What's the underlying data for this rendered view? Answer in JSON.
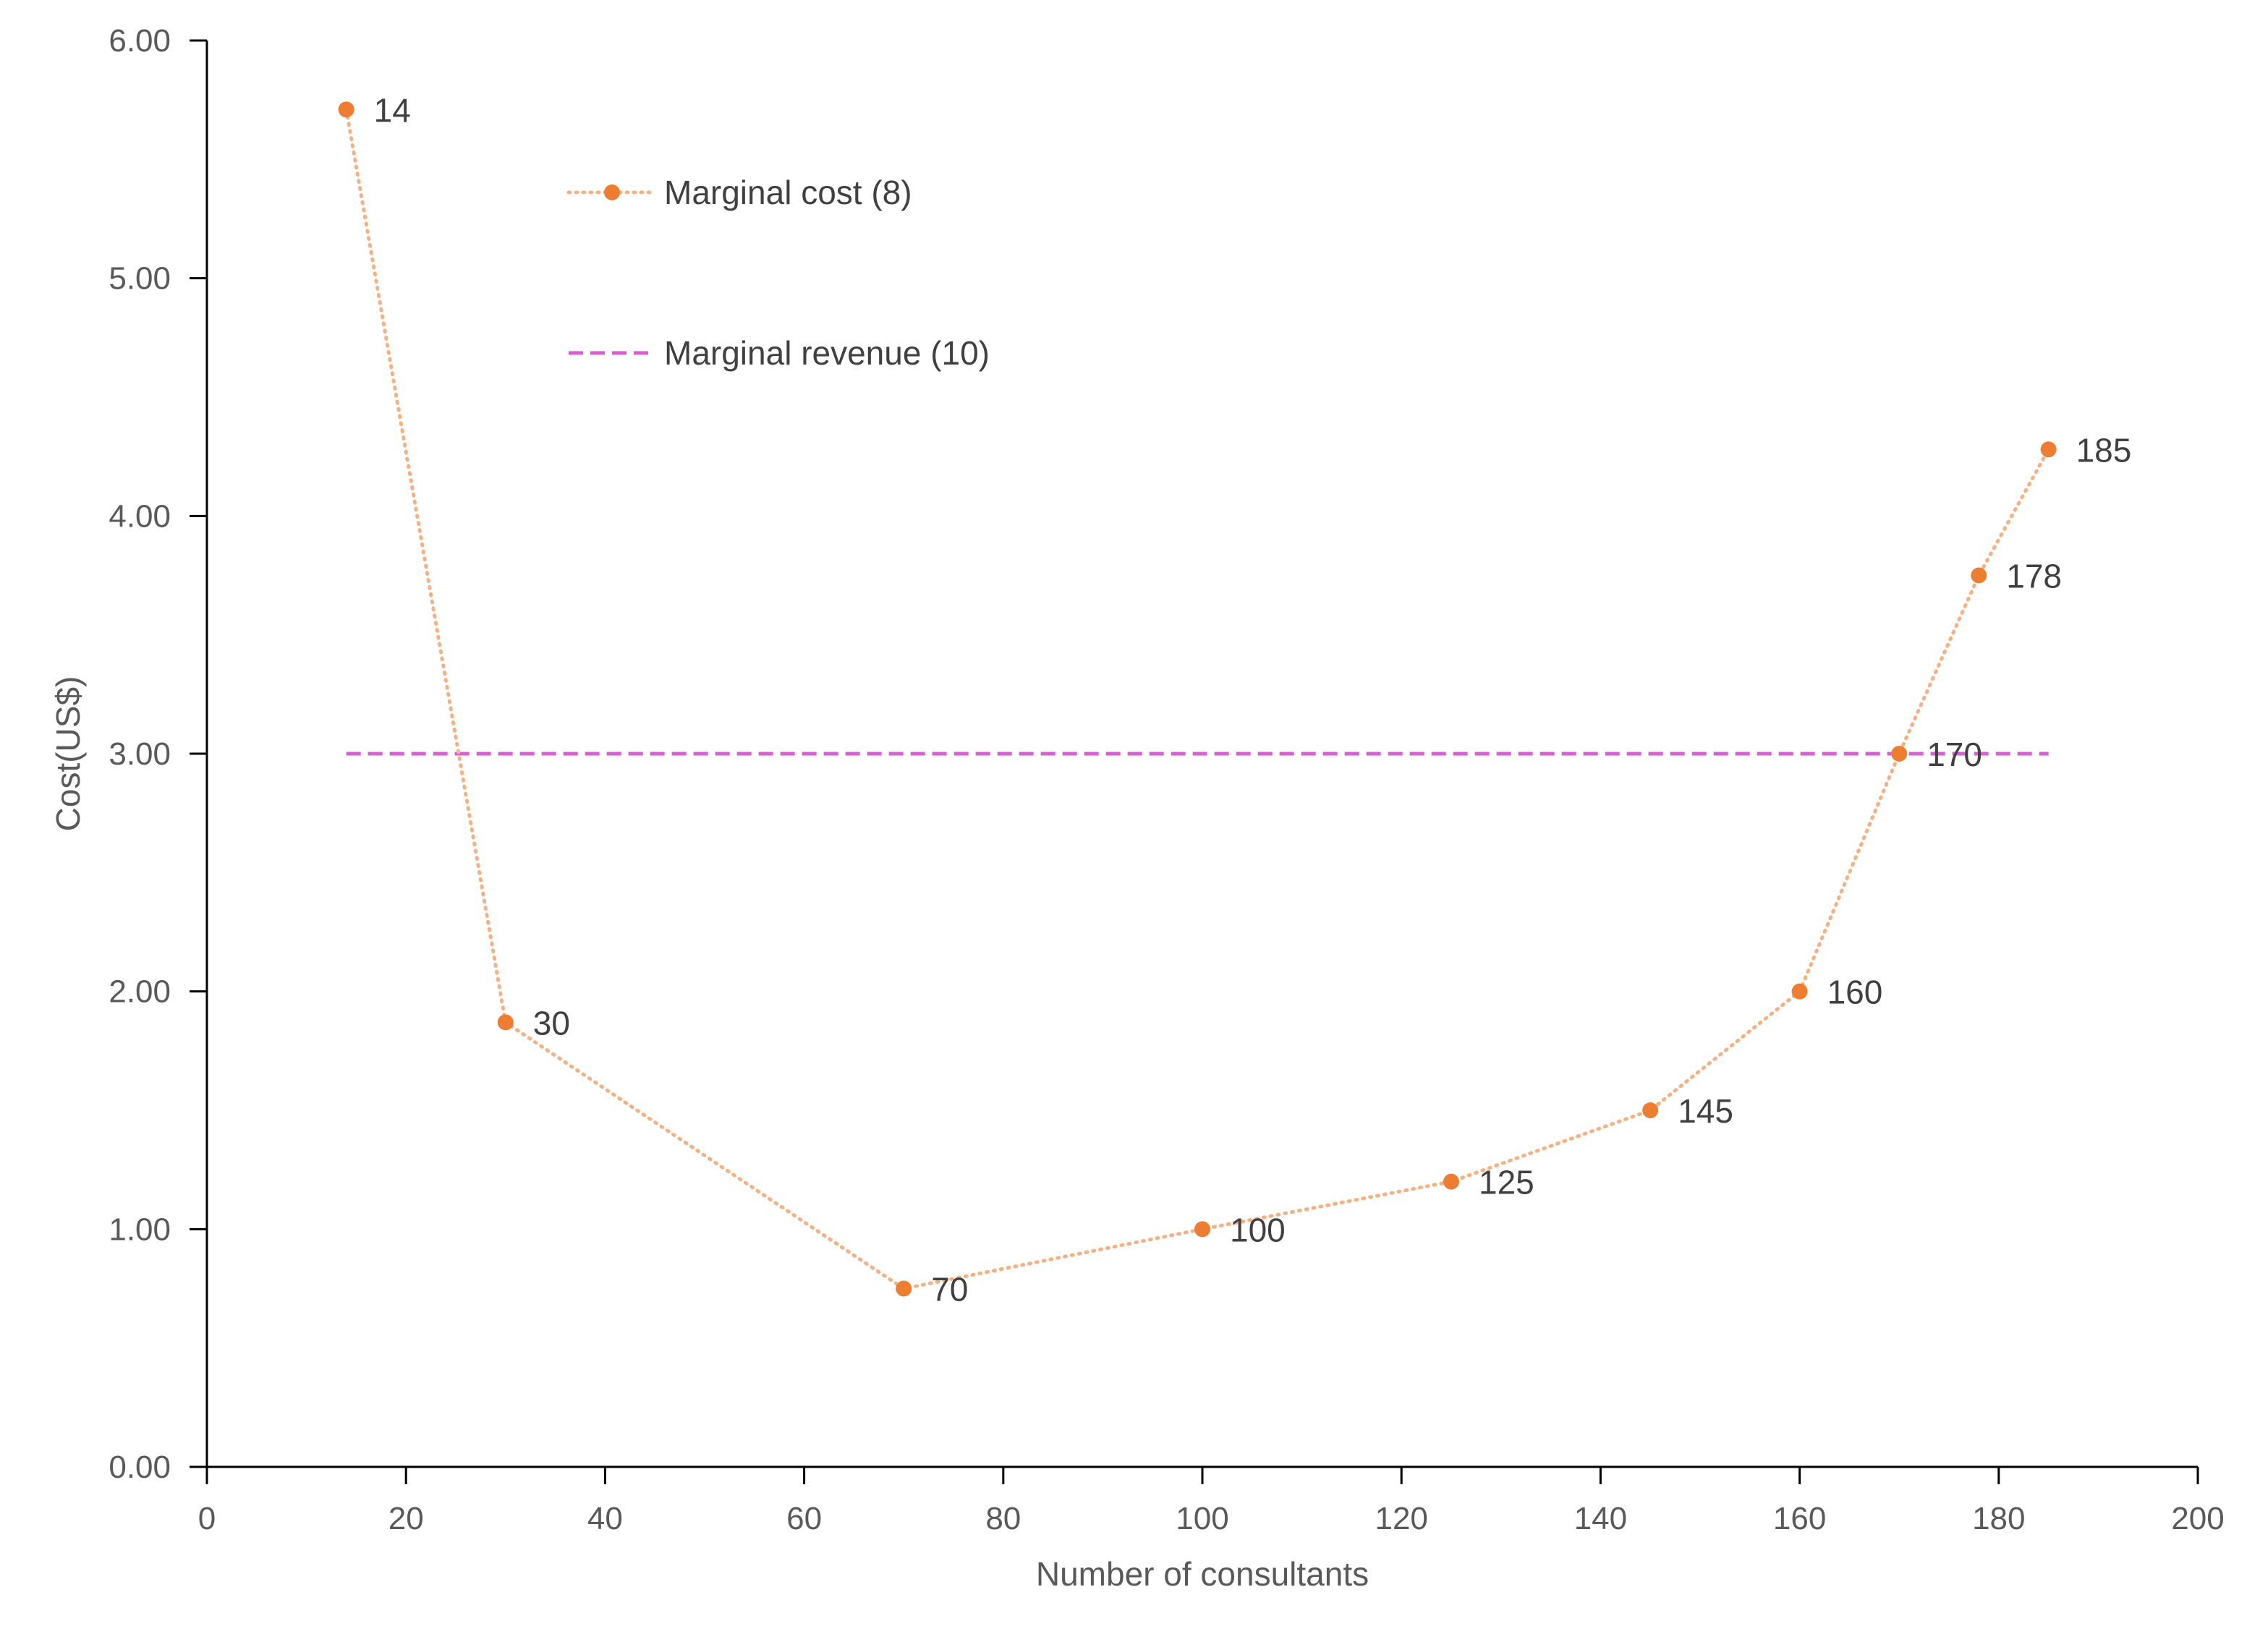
{
  "chart_data": {
    "type": "scatter",
    "title": "",
    "xlabel": "Number of consultants",
    "ylabel": "Cost(US$)",
    "xlim": [
      0,
      200
    ],
    "ylim": [
      0,
      6
    ],
    "x_ticks": [
      "0",
      "20",
      "40",
      "60",
      "80",
      "100",
      "120",
      "140",
      "160",
      "180",
      "200"
    ],
    "y_ticks": [
      "0.00",
      "1.00",
      "2.00",
      "3.00",
      "4.00",
      "5.00",
      "6.00"
    ],
    "grid": false,
    "legend_position": "top-left",
    "series": [
      {
        "name": "Marginal cost (8)",
        "style": "dotted line with markers",
        "line_color": "#F4B183",
        "marker_color": "#ED7D31",
        "x": [
          14,
          30,
          70,
          100,
          125,
          145,
          160,
          170,
          178,
          185
        ],
        "y": [
          5.71,
          1.87,
          0.75,
          1.0,
          1.2,
          1.5,
          2.0,
          3.0,
          3.75,
          4.28
        ],
        "point_labels": [
          "14",
          "30",
          "70",
          "100",
          "125",
          "145",
          "160",
          "170",
          "178",
          "185"
        ]
      },
      {
        "name": "Marginal revenue (10)",
        "style": "dashed line",
        "line_color": "#D65FD2",
        "x": [
          14,
          185
        ],
        "y": [
          3.0,
          3.0
        ]
      }
    ]
  }
}
